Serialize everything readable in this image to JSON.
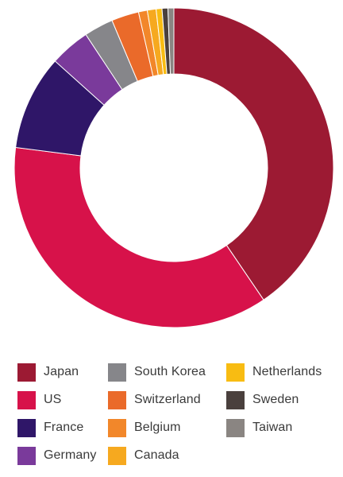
{
  "chart_data": {
    "type": "pie",
    "donut": true,
    "legend_position": "bottom",
    "categories": [
      "Japan",
      "US",
      "France",
      "Germany",
      "South Korea",
      "Switzerland",
      "Belgium",
      "Canada",
      "Netherlands",
      "Sweden",
      "Taiwan"
    ],
    "values": [
      40.9,
      36.9,
      9.7,
      4.1,
      3.0,
      2.8,
      0.9,
      0.9,
      0.6,
      0.6,
      0.6
    ],
    "unit": "%",
    "colors": [
      "#9c1a33",
      "#d7124a",
      "#2f1668",
      "#7a3a9b",
      "#86868a",
      "#ea6a2a",
      "#f2872a",
      "#f6a91f",
      "#f8bc12",
      "#4a403d",
      "#8a8582"
    ]
  }
}
